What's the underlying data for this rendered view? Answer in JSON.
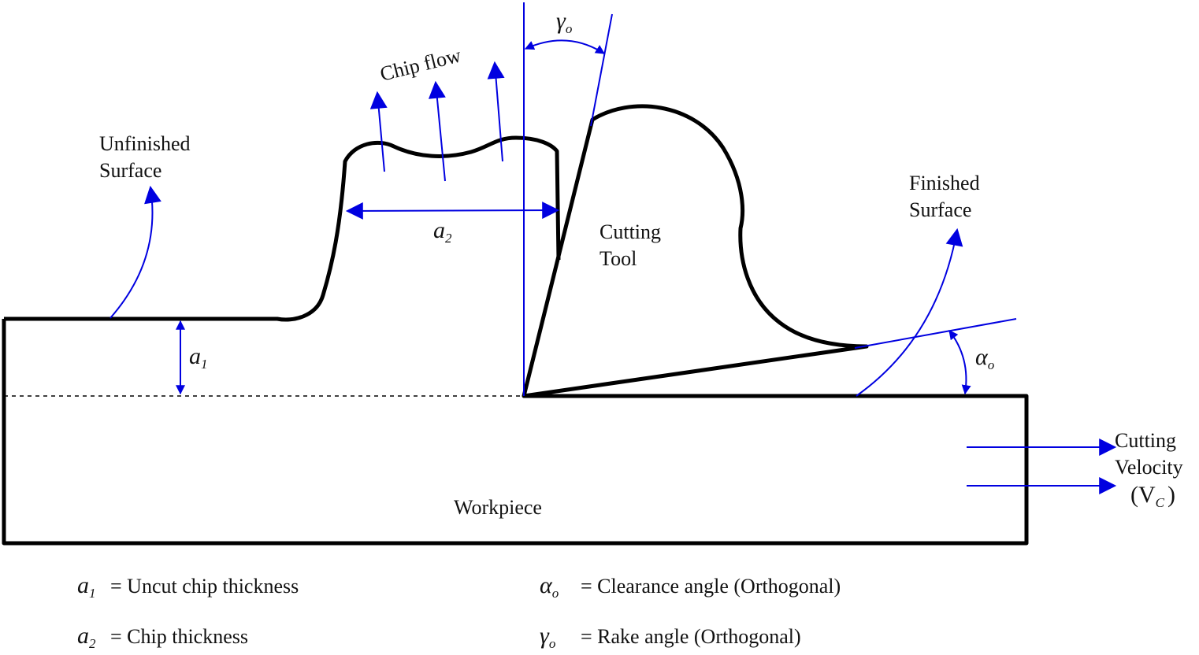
{
  "labels": {
    "chip_flow": "Chip flow",
    "unfinished_surface": [
      "Unfinished",
      "Surface"
    ],
    "cutting_tool": [
      "Cutting",
      "Tool"
    ],
    "finished_surface": [
      "Finished",
      "Surface"
    ],
    "workpiece": "Workpiece",
    "cutting_velocity": {
      "lines": [
        "Cutting",
        "Velocity"
      ],
      "open": "(",
      "symbol": "V",
      "subscript": "C",
      "close": ")"
    },
    "rake_symbol": {
      "symbol": "γ",
      "subscript": "o"
    },
    "clearance_symbol": {
      "symbol": "α",
      "subscript": "o"
    },
    "a1_symbol": {
      "symbol": "a",
      "subscript": "1"
    },
    "a2_symbol": {
      "symbol": "a",
      "subscript": "2"
    }
  },
  "legend": [
    {
      "symbol": "a",
      "subscript": "1",
      "text": "= Uncut chip thickness"
    },
    {
      "symbol": "a",
      "subscript": "2",
      "text": "= Chip thickness"
    },
    {
      "symbol": "α",
      "subscript": "o",
      "text": "= Clearance angle  (Orthogonal)"
    },
    {
      "symbol": "γ",
      "subscript": "o",
      "text": "= Rake angle (Orthogonal)"
    }
  ]
}
